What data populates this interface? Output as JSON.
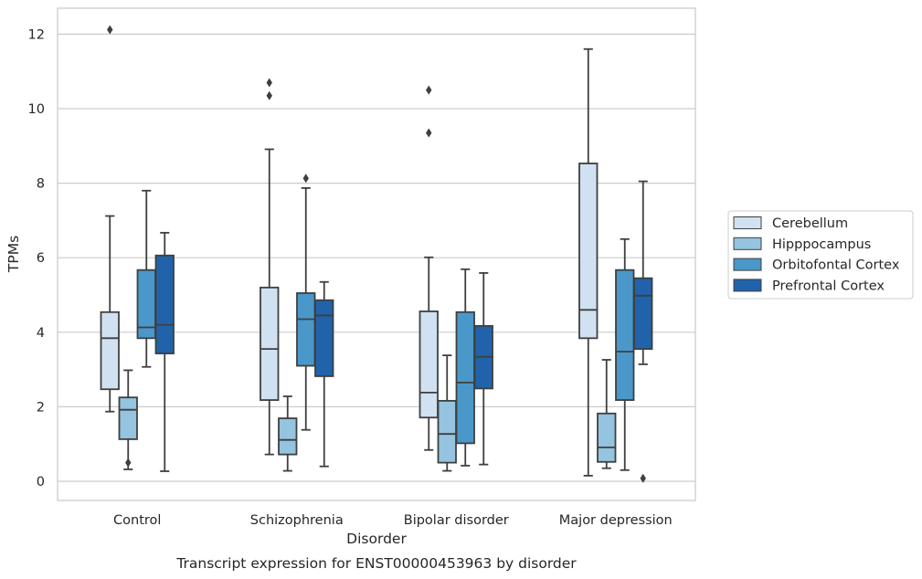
{
  "chart_data": {
    "type": "box",
    "xlabel": "Disorder",
    "ylabel": "TPMs",
    "caption": "Transcript expression for ENST00000453963 by disorder",
    "ylim": [
      -0.5,
      12.7
    ],
    "yticks": [
      0,
      2,
      4,
      6,
      8,
      10,
      12
    ],
    "grid": "horizontal",
    "legend_position": "center-right",
    "categories": [
      "Control",
      "Schizophrenia",
      "Bipolar disorder",
      "Major depression"
    ],
    "series": [
      {
        "name": "Cerebellum",
        "color": "#d0e1f2",
        "boxes": [
          {
            "min": 1.87,
            "q1": 2.47,
            "median": 3.84,
            "q3": 4.54,
            "max": 7.12,
            "outliers": [
              12.12
            ]
          },
          {
            "min": 0.72,
            "q1": 2.18,
            "median": 3.55,
            "q3": 5.2,
            "max": 8.91,
            "outliers": [
              10.35,
              10.7
            ]
          },
          {
            "min": 0.84,
            "q1": 1.71,
            "median": 2.38,
            "q3": 4.56,
            "max": 6.01,
            "outliers": [
              9.35,
              10.5
            ]
          },
          {
            "min": 0.15,
            "q1": 3.84,
            "median": 4.6,
            "q3": 8.53,
            "max": 11.6,
            "outliers": []
          }
        ]
      },
      {
        "name": "Hipppocampus",
        "color": "#94c4df",
        "boxes": [
          {
            "min": 0.32,
            "q1": 1.13,
            "median": 1.92,
            "q3": 2.25,
            "max": 2.98,
            "outliers": [
              0.5
            ]
          },
          {
            "min": 0.28,
            "q1": 0.72,
            "median": 1.11,
            "q3": 1.69,
            "max": 2.28,
            "outliers": []
          },
          {
            "min": 0.28,
            "q1": 0.5,
            "median": 1.27,
            "q3": 2.16,
            "max": 3.38,
            "outliers": []
          },
          {
            "min": 0.35,
            "q1": 0.52,
            "median": 0.91,
            "q3": 1.82,
            "max": 3.26,
            "outliers": []
          }
        ]
      },
      {
        "name": "Orbitofontal Cortex",
        "color": "#4a98c9",
        "boxes": [
          {
            "min": 3.07,
            "q1": 3.84,
            "median": 4.13,
            "q3": 5.67,
            "max": 7.8,
            "outliers": []
          },
          {
            "min": 1.38,
            "q1": 3.1,
            "median": 4.35,
            "q3": 5.05,
            "max": 7.87,
            "outliers": [
              8.13
            ]
          },
          {
            "min": 0.42,
            "q1": 1.02,
            "median": 2.65,
            "q3": 4.54,
            "max": 5.69,
            "outliers": []
          },
          {
            "min": 0.3,
            "q1": 2.18,
            "median": 3.48,
            "q3": 5.67,
            "max": 6.5,
            "outliers": []
          }
        ]
      },
      {
        "name": "Prefrontal Cortex",
        "color": "#2163aa",
        "boxes": [
          {
            "min": 0.27,
            "q1": 3.43,
            "median": 4.2,
            "q3": 6.06,
            "max": 6.67,
            "outliers": []
          },
          {
            "min": 0.4,
            "q1": 2.82,
            "median": 4.45,
            "q3": 4.86,
            "max": 5.35,
            "outliers": []
          },
          {
            "min": 0.45,
            "q1": 2.49,
            "median": 3.34,
            "q3": 4.17,
            "max": 5.59,
            "outliers": []
          },
          {
            "min": 3.14,
            "q1": 3.55,
            "median": 4.98,
            "q3": 5.45,
            "max": 8.05,
            "outliers": [
              0.08
            ]
          }
        ]
      }
    ]
  }
}
